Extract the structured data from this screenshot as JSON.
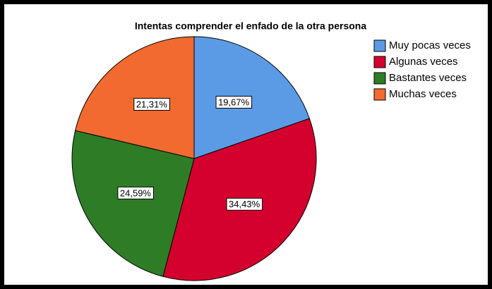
{
  "chart_data": {
    "type": "pie",
    "title": "Intentas comprender el enfado de la otra persona",
    "categories": [
      "Muy pocas veces",
      "Algunas veces",
      "Bastantes veces",
      "Muchas veces"
    ],
    "values": [
      19.67,
      34.43,
      24.59,
      21.31
    ],
    "value_labels": [
      "19,67%",
      "34,43%",
      "24,59%",
      "21,31%"
    ],
    "colors": [
      "#5b9be6",
      "#d4002d",
      "#2e7d26",
      "#f26a30"
    ],
    "legend": "right"
  }
}
